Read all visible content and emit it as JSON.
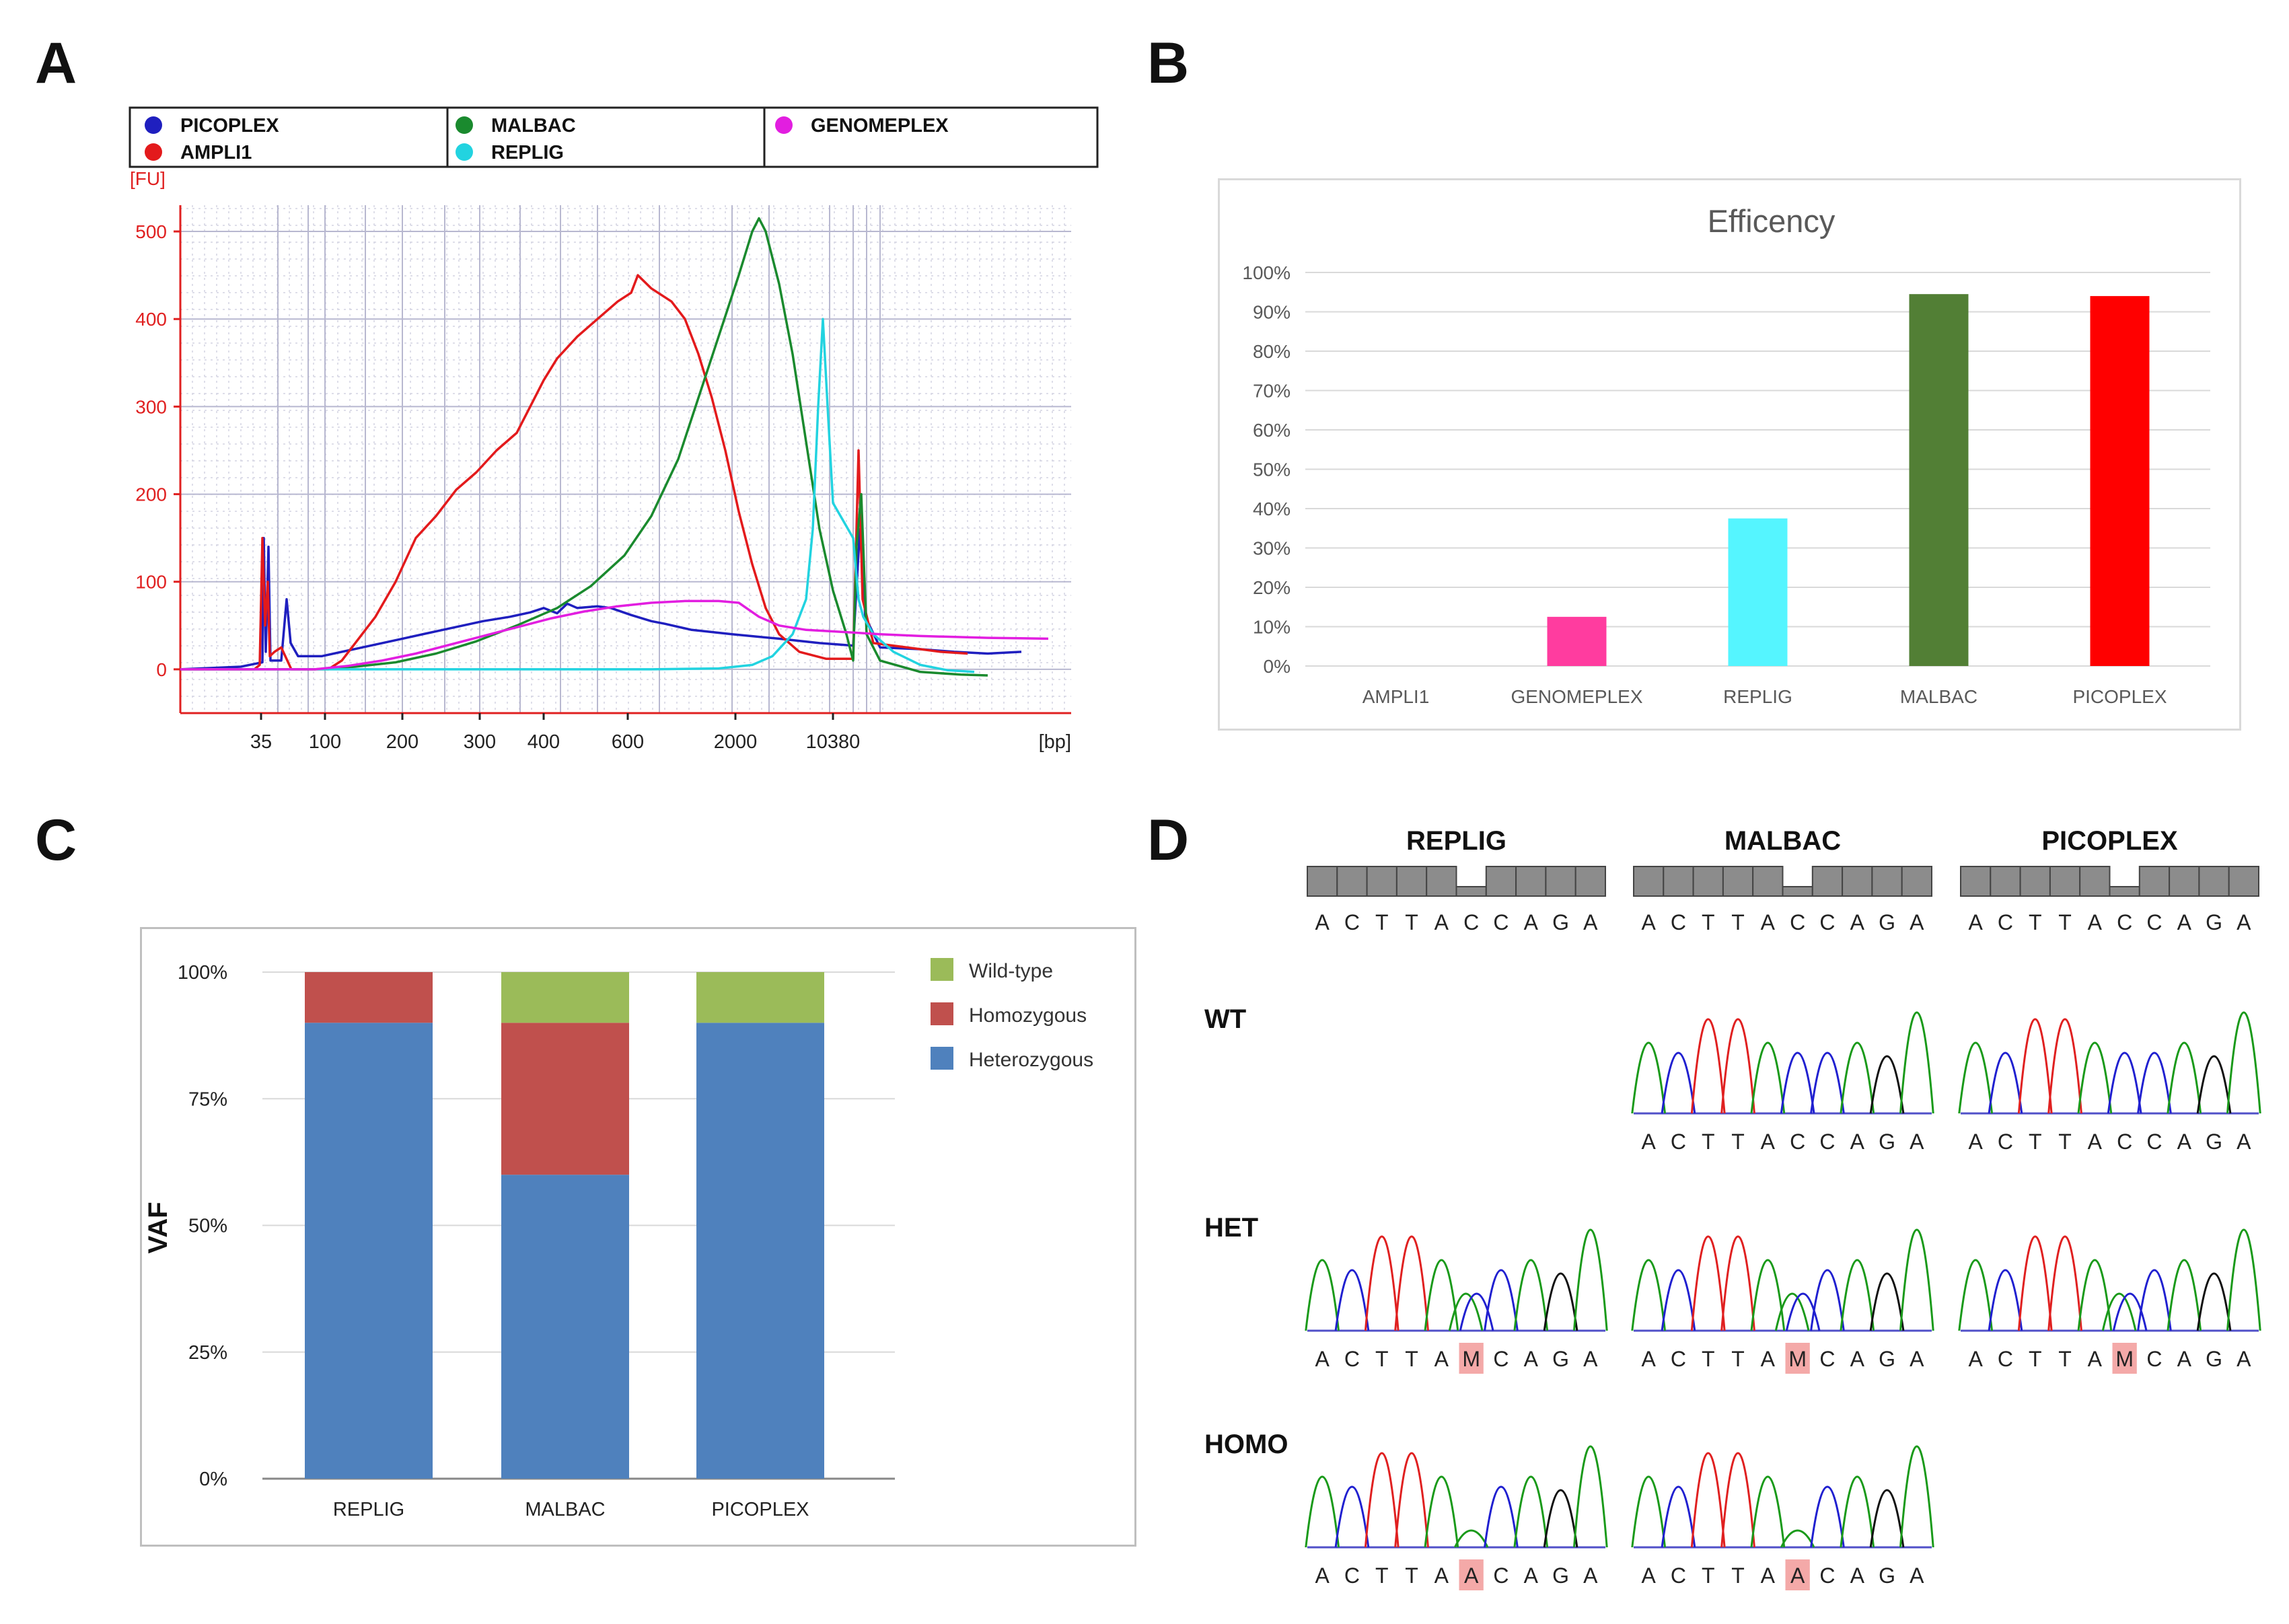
{
  "panel_labels": [
    "A",
    "B",
    "C",
    "D"
  ],
  "chart_data": [
    {
      "panel": "A",
      "type": "line",
      "x_unit": "[bp]",
      "y_unit": "[FU]",
      "xticks": [
        "35",
        "100",
        "200",
        "300",
        "400",
        "600",
        "2000",
        "10380"
      ],
      "yticks": [
        500,
        400,
        300,
        200,
        100,
        0
      ],
      "ylim": [
        -50,
        530
      ],
      "grid": true,
      "legend_position": "top",
      "legend": [
        {
          "name": "PICOPLEX",
          "color": "#1f1fbf"
        },
        {
          "name": "AMPLI1",
          "color": "#e31a1c"
        },
        {
          "name": "MALBAC",
          "color": "#1a8a2e"
        },
        {
          "name": "REPLIG",
          "color": "#22d3e0"
        },
        {
          "name": "GENOMEPLEX",
          "color": "#e21ee0"
        }
      ],
      "series": [
        {
          "name": "PICOPLEX",
          "color": "#1f1fbf",
          "points": [
            [
              0,
              0
            ],
            [
              90,
              3
            ],
            [
              122,
              8
            ],
            [
              124,
              150
            ],
            [
              127,
              20
            ],
            [
              131,
              140
            ],
            [
              134,
              10
            ],
            [
              150,
              10
            ],
            [
              158,
              80
            ],
            [
              164,
              30
            ],
            [
              175,
              15
            ],
            [
              210,
              15
            ],
            [
              270,
              25
            ],
            [
              330,
              35
            ],
            [
              390,
              45
            ],
            [
              450,
              55
            ],
            [
              490,
              60
            ],
            [
              520,
              65
            ],
            [
              540,
              70
            ],
            [
              560,
              64
            ],
            [
              575,
              75
            ],
            [
              590,
              70
            ],
            [
              620,
              72
            ],
            [
              640,
              70
            ],
            [
              670,
              62
            ],
            [
              700,
              55
            ],
            [
              720,
              52
            ],
            [
              760,
              45
            ],
            [
              820,
              40
            ],
            [
              890,
              35
            ],
            [
              950,
              30
            ],
            [
              985,
              28
            ],
            [
              1000,
              27
            ],
            [
              1010,
              160
            ],
            [
              1018,
              60
            ],
            [
              1040,
              25
            ],
            [
              1100,
              23
            ],
            [
              1150,
              20
            ],
            [
              1200,
              18
            ],
            [
              1250,
              20
            ]
          ]
        },
        {
          "name": "AMPLI1",
          "color": "#e31a1c",
          "points": [
            [
              0,
              0
            ],
            [
              110,
              0
            ],
            [
              118,
              5
            ],
            [
              122,
              150
            ],
            [
              126,
              50
            ],
            [
              130,
              100
            ],
            [
              133,
              15
            ],
            [
              140,
              20
            ],
            [
              150,
              25
            ],
            [
              165,
              0
            ],
            [
              220,
              0
            ],
            [
              240,
              10
            ],
            [
              260,
              30
            ],
            [
              290,
              60
            ],
            [
              320,
              100
            ],
            [
              350,
              150
            ],
            [
              380,
              175
            ],
            [
              410,
              205
            ],
            [
              440,
              225
            ],
            [
              470,
              250
            ],
            [
              500,
              270
            ],
            [
              520,
              300
            ],
            [
              540,
              330
            ],
            [
              560,
              355
            ],
            [
              590,
              380
            ],
            [
              620,
              400
            ],
            [
              650,
              420
            ],
            [
              670,
              430
            ],
            [
              680,
              450
            ],
            [
              700,
              435
            ],
            [
              730,
              420
            ],
            [
              750,
              400
            ],
            [
              770,
              360
            ],
            [
              790,
              310
            ],
            [
              810,
              250
            ],
            [
              830,
              180
            ],
            [
              850,
              120
            ],
            [
              870,
              70
            ],
            [
              890,
              40
            ],
            [
              920,
              20
            ],
            [
              960,
              12
            ],
            [
              1000,
              12
            ],
            [
              1008,
              250
            ],
            [
              1014,
              80
            ],
            [
              1030,
              30
            ],
            [
              1080,
              25
            ],
            [
              1130,
              20
            ],
            [
              1170,
              18
            ]
          ]
        },
        {
          "name": "MALBAC",
          "color": "#1a8a2e",
          "points": [
            [
              0,
              0
            ],
            [
              200,
              0
            ],
            [
              260,
              3
            ],
            [
              320,
              8
            ],
            [
              380,
              18
            ],
            [
              440,
              32
            ],
            [
              500,
              50
            ],
            [
              560,
              70
            ],
            [
              610,
              95
            ],
            [
              660,
              130
            ],
            [
              700,
              175
            ],
            [
              740,
              240
            ],
            [
              770,
              310
            ],
            [
              800,
              380
            ],
            [
              830,
              450
            ],
            [
              850,
              500
            ],
            [
              860,
              515
            ],
            [
              870,
              500
            ],
            [
              890,
              440
            ],
            [
              910,
              360
            ],
            [
              930,
              260
            ],
            [
              950,
              160
            ],
            [
              970,
              90
            ],
            [
              990,
              40
            ],
            [
              1000,
              10
            ],
            [
              1005,
              140
            ],
            [
              1012,
              200
            ],
            [
              1020,
              40
            ],
            [
              1040,
              10
            ],
            [
              1100,
              -3
            ],
            [
              1160,
              -6
            ],
            [
              1200,
              -7
            ]
          ]
        },
        {
          "name": "REPLIG",
          "color": "#22d3e0",
          "points": [
            [
              0,
              0
            ],
            [
              300,
              0
            ],
            [
              700,
              0
            ],
            [
              800,
              1
            ],
            [
              850,
              5
            ],
            [
              880,
              15
            ],
            [
              910,
              40
            ],
            [
              930,
              80
            ],
            [
              940,
              160
            ],
            [
              948,
              300
            ],
            [
              955,
              400
            ],
            [
              962,
              300
            ],
            [
              970,
              190
            ],
            [
              985,
              170
            ],
            [
              1000,
              150
            ],
            [
              1008,
              80
            ],
            [
              1015,
              60
            ],
            [
              1030,
              40
            ],
            [
              1060,
              20
            ],
            [
              1100,
              5
            ],
            [
              1140,
              -1
            ],
            [
              1180,
              -3
            ]
          ]
        },
        {
          "name": "GENOMEPLEX",
          "color": "#e21ee0",
          "points": [
            [
              0,
              0
            ],
            [
              200,
              0
            ],
            [
              250,
              4
            ],
            [
              300,
              10
            ],
            [
              350,
              18
            ],
            [
              400,
              28
            ],
            [
              450,
              38
            ],
            [
              500,
              48
            ],
            [
              550,
              58
            ],
            [
              600,
              66
            ],
            [
              650,
              72
            ],
            [
              700,
              76
            ],
            [
              750,
              78
            ],
            [
              800,
              78
            ],
            [
              830,
              76
            ],
            [
              860,
              60
            ],
            [
              890,
              50
            ],
            [
              930,
              45
            ],
            [
              1000,
              42
            ],
            [
              1040,
              40
            ],
            [
              1100,
              38
            ],
            [
              1200,
              36
            ],
            [
              1290,
              35
            ]
          ]
        }
      ]
    },
    {
      "panel": "B",
      "type": "bar",
      "title": "Efficency",
      "categories": [
        "AMPLI1",
        "GENOMEPLEX",
        "REPLIG",
        "MALBAC",
        "PICOPLEX"
      ],
      "values": [
        0,
        12.5,
        37.5,
        94.5,
        94
      ],
      "colors": [
        "#a0a0a0",
        "#ff3c9f",
        "#55f5ff",
        "#527f35",
        "#ff0000"
      ],
      "yticks": [
        "100%",
        "90%",
        "80%",
        "70%",
        "60%",
        "50%",
        "40%",
        "30%",
        "20%",
        "10%",
        "0%"
      ],
      "ylim": [
        0,
        100
      ],
      "grid": true
    },
    {
      "panel": "C",
      "type": "bar",
      "stacked": true,
      "ylabel": "VAF",
      "categories": [
        "REPLIG",
        "MALBAC",
        "PICOPLEX"
      ],
      "yticks": [
        "100%",
        "75%",
        "50%",
        "25%",
        "0%"
      ],
      "ylim": [
        0,
        100
      ],
      "grid": true,
      "legend_position": "right",
      "series": [
        {
          "name": "Heterozygous",
          "color": "#4f81bd",
          "values": [
            90,
            60,
            90
          ]
        },
        {
          "name": "Homozygous",
          "color": "#c0504d",
          "values": [
            10,
            30,
            0
          ]
        },
        {
          "name": "Wild-type",
          "color": "#9bbb59",
          "values": [
            0,
            10,
            10
          ]
        }
      ],
      "legend_order": [
        "Wild-type",
        "Homozygous",
        "Heterozygous"
      ]
    }
  ],
  "panel_d": {
    "columns": [
      "REPLIG",
      "MALBAC",
      "PICOPLEX"
    ],
    "reference_sequence": [
      "A",
      "C",
      "T",
      "T",
      "A",
      "C",
      "C",
      "A",
      "G",
      "A"
    ],
    "rows": [
      {
        "label": "WT",
        "cells": [
          null,
          {
            "bases": [
              "A",
              "C",
              "T",
              "T",
              "A",
              "C",
              "C",
              "A",
              "G",
              "A"
            ],
            "highlight": -1
          },
          {
            "bases": [
              "A",
              "C",
              "T",
              "T",
              "A",
              "C",
              "C",
              "A",
              "G",
              "A"
            ],
            "highlight": -1
          }
        ]
      },
      {
        "label": "HET",
        "cells": [
          {
            "bases": [
              "A",
              "C",
              "T",
              "T",
              "A",
              "M",
              "C",
              "A",
              "G",
              "A"
            ],
            "highlight": 5
          },
          {
            "bases": [
              "A",
              "C",
              "T",
              "T",
              "A",
              "M",
              "C",
              "A",
              "G",
              "A"
            ],
            "highlight": 5
          },
          {
            "bases": [
              "A",
              "C",
              "T",
              "T",
              "A",
              "M",
              "C",
              "A",
              "G",
              "A"
            ],
            "highlight": 5
          }
        ]
      },
      {
        "label": "HOMO",
        "cells": [
          {
            "bases": [
              "A",
              "C",
              "T",
              "T",
              "A",
              "A",
              "C",
              "A",
              "G",
              "A"
            ],
            "highlight": 5
          },
          {
            "bases": [
              "A",
              "C",
              "T",
              "T",
              "A",
              "A",
              "C",
              "A",
              "G",
              "A"
            ],
            "highlight": 5
          },
          null
        ]
      }
    ],
    "base_colors": {
      "A": "#1a9a1a",
      "C": "#2020d0",
      "G": "#111111",
      "T": "#e02020"
    },
    "highlight_color": "#f4a9a8"
  }
}
